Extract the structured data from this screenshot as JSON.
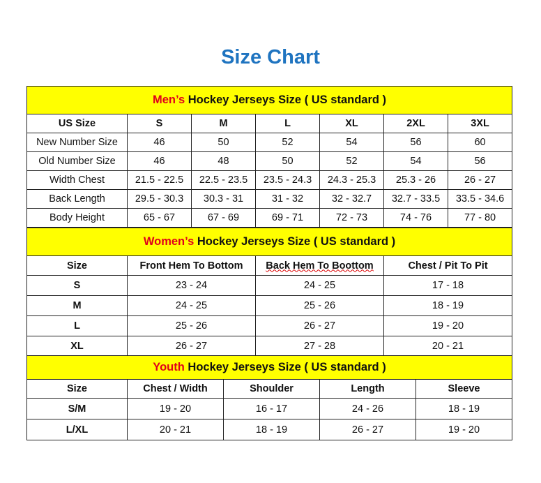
{
  "title": "Size Chart",
  "colors": {
    "header_bg": "#ffff00",
    "highlight": "#e0001b",
    "title": "#1f74c0"
  },
  "men": {
    "highlight": "Men’s",
    "heading": " Hockey Jerseys Size ( US standard )",
    "columns": [
      "US Size",
      "S",
      "M",
      "L",
      "XL",
      "2XL",
      "3XL"
    ],
    "rows": [
      [
        "New Number Size",
        "46",
        "50",
        "52",
        "54",
        "56",
        "60"
      ],
      [
        "Old Number Size",
        "46",
        "48",
        "50",
        "52",
        "54",
        "56"
      ],
      [
        "Width Chest",
        "21.5 - 22.5",
        "22.5 - 23.5",
        "23.5 - 24.3",
        "24.3 - 25.3",
        "25.3 - 26",
        "26 - 27"
      ],
      [
        "Back Length",
        "29.5 - 30.3",
        "30.3 - 31",
        "31 - 32",
        "32 - 32.7",
        "32.7 - 33.5",
        "33.5 - 34.6"
      ],
      [
        "Body Height",
        "65 - 67",
        "67 - 69",
        "69 - 71",
        "72 - 73",
        "74 - 76",
        "77 - 80"
      ]
    ]
  },
  "women": {
    "highlight": "Women’s",
    "heading": " Hockey Jerseys Size ( US standard )",
    "columns": [
      "Size",
      "Front Hem To Bottom",
      "Back Hem To Boottom",
      "Chest / Pit To Pit"
    ],
    "rows": [
      [
        "S",
        "23 - 24",
        "24 - 25",
        "17 - 18"
      ],
      [
        "M",
        "24 - 25",
        "25 - 26",
        "18 - 19"
      ],
      [
        "L",
        "25 - 26",
        "26 - 27",
        "19 - 20"
      ],
      [
        "XL",
        "26 - 27",
        "27 - 28",
        "20 - 21"
      ]
    ]
  },
  "youth": {
    "highlight": "Youth",
    "heading": " Hockey Jerseys Size ( US standard )",
    "columns": [
      "Size",
      "Chest / Width",
      "Shoulder",
      "Length",
      "Sleeve"
    ],
    "rows": [
      [
        "S/M",
        "19 - 20",
        "16 - 17",
        "24 - 26",
        "18 - 19"
      ],
      [
        "L/XL",
        "20 - 21",
        "18 - 19",
        "26 - 27",
        "19 - 20"
      ]
    ]
  }
}
